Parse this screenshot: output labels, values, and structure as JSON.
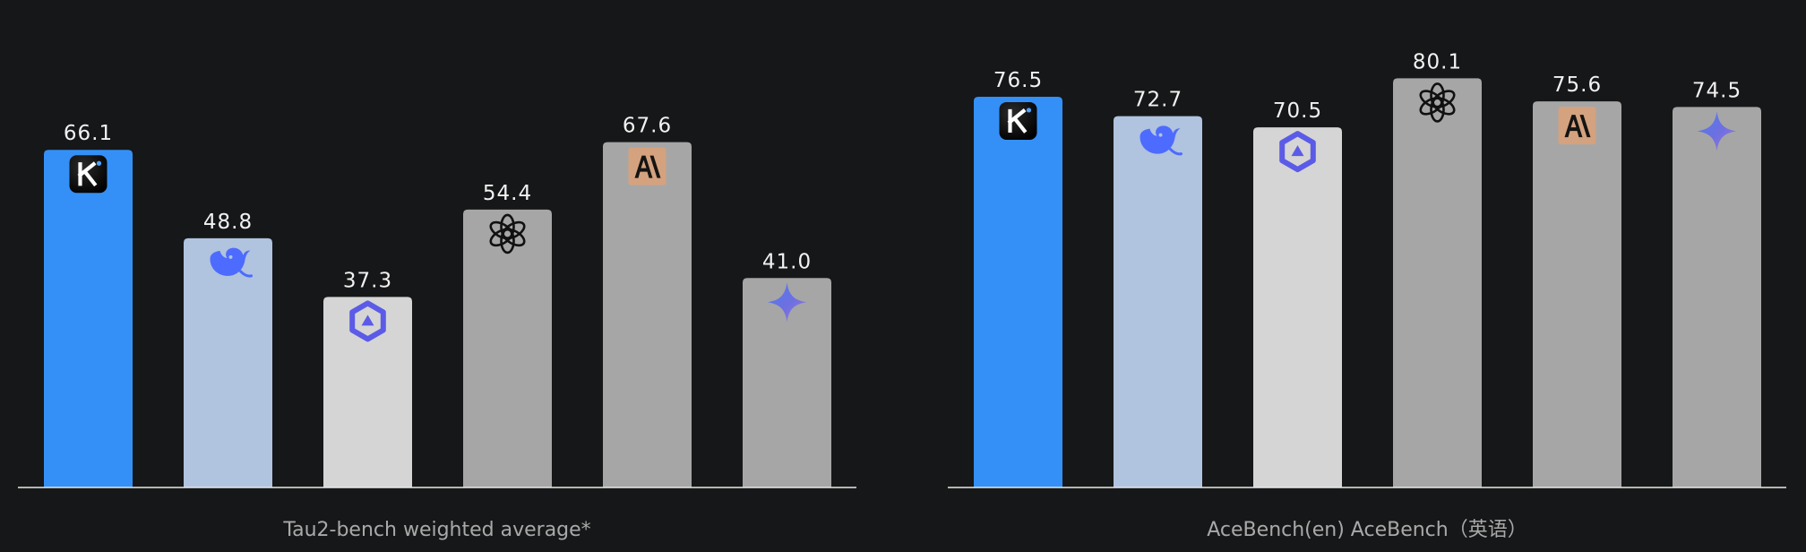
{
  "chart_data": [
    {
      "type": "bar",
      "xlabel": "Tau2-bench weighted average*",
      "ylim": [
        0,
        80
      ],
      "values": [
        66.1,
        48.8,
        37.3,
        54.4,
        67.6,
        41.0
      ],
      "value_labels": [
        "66.1",
        "48.8",
        "37.3",
        "54.4",
        "67.6",
        "41.0"
      ],
      "bar_colors": [
        "#3490F6",
        "#B0C3DF",
        "#D5D5D5",
        "#A6A6A6",
        "#A6A6A6",
        "#A6A6A6"
      ],
      "icons": [
        "kimi-logo-icon",
        "deepseek-whale-icon",
        "qwen-logo-icon",
        "openai-logo-icon",
        "anthropic-logo-icon",
        "gemini-sparkle-icon"
      ]
    },
    {
      "type": "bar",
      "xlabel": "AceBench(en)  AceBench（英语）",
      "ylim": [
        0,
        80
      ],
      "values": [
        76.5,
        72.7,
        70.5,
        80.1,
        75.6,
        74.5
      ],
      "value_labels": [
        "76.5",
        "72.7",
        "70.5",
        "80.1",
        "75.6",
        "74.5"
      ],
      "bar_colors": [
        "#3490F6",
        "#B0C3DF",
        "#D5D5D5",
        "#A6A6A6",
        "#A6A6A6",
        "#A6A6A6"
      ],
      "icons": [
        "kimi-logo-icon",
        "deepseek-whale-icon",
        "qwen-logo-icon",
        "openai-logo-icon",
        "anthropic-logo-icon",
        "gemini-sparkle-icon"
      ]
    }
  ],
  "colors": {
    "background": "#161718",
    "baseline": "#E8E8E8",
    "value_text": "#F2F2F2",
    "caption_text": "#A9A9A9"
  }
}
